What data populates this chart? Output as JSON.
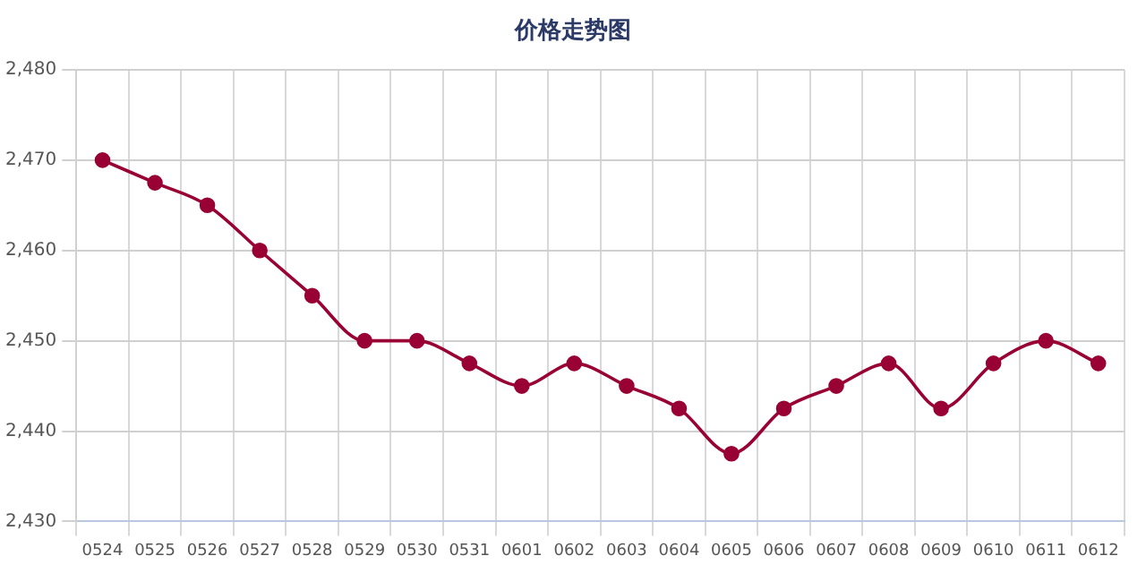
{
  "chart_data": {
    "type": "line",
    "title": "价格走势图",
    "categories": [
      "0524",
      "0525",
      "0526",
      "0527",
      "0528",
      "0529",
      "0530",
      "0531",
      "0601",
      "0602",
      "0603",
      "0604",
      "0605",
      "0606",
      "0607",
      "0608",
      "0609",
      "0610",
      "0611",
      "0612"
    ],
    "series": [
      {
        "color": "#990033",
        "values": [
          2470,
          2467.5,
          2465,
          2460,
          2455,
          2450,
          2450,
          2447.5,
          2445,
          2447.5,
          2445,
          2442.5,
          2437.5,
          2442.5,
          2445,
          2447.5,
          2442.5,
          2447.5,
          2450,
          2447.5
        ]
      }
    ],
    "ylim": [
      2430,
      2480
    ],
    "yticks": [
      {
        "value": 2430,
        "label": "2,430"
      },
      {
        "value": 2440,
        "label": "2,440"
      },
      {
        "value": 2450,
        "label": "2,450"
      },
      {
        "value": 2460,
        "label": "2,460"
      },
      {
        "value": 2470,
        "label": "2,470"
      },
      {
        "value": 2480,
        "label": "2,480"
      }
    ],
    "grid": true,
    "marker": "circle",
    "line_style": "solid",
    "legend": false
  }
}
